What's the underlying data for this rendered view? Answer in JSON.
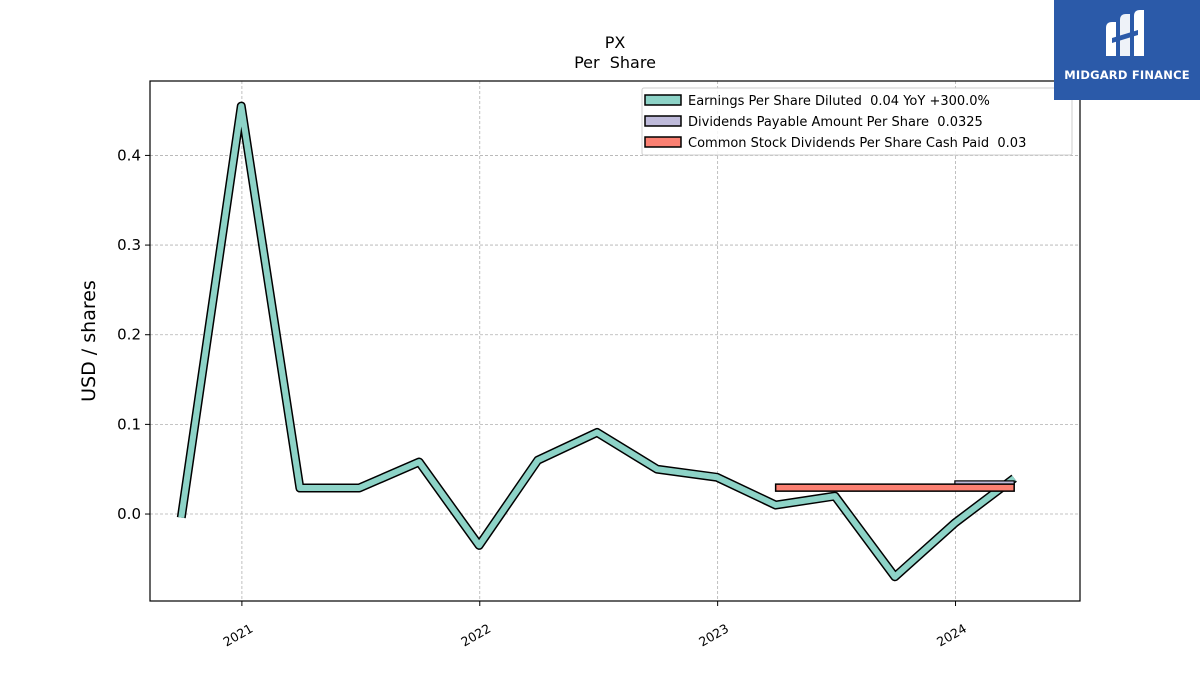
{
  "brand": {
    "name": "MIDGARD FINANCE",
    "logo_icon": "midgard-m-icon",
    "color": "#2b5aa9"
  },
  "chart_data": {
    "type": "line",
    "title": "PX",
    "subtitle": "Per  Share",
    "xlabel": "",
    "ylabel": "USD / shares",
    "x_ticks": [
      "2021",
      "2022",
      "2023",
      "2024"
    ],
    "y_ticks": [
      "0.0",
      "0.1",
      "0.2",
      "0.3",
      "0.4"
    ],
    "ylim": [
      -0.097,
      0.483
    ],
    "xlim": [
      "2020-08-13",
      "2024-07-10"
    ],
    "grid": true,
    "legend_position": "top-right",
    "series": [
      {
        "name": "Earnings Per Share Diluted  0.04 YoY +300.0%",
        "type": "line",
        "color": "#8dd3c7",
        "points": [
          {
            "x": "2020-09-30",
            "y": -0.004
          },
          {
            "x": "2020-12-31",
            "y": 0.455
          },
          {
            "x": "2021-03-31",
            "y": 0.029
          },
          {
            "x": "2021-06-30",
            "y": 0.029
          },
          {
            "x": "2021-09-30",
            "y": 0.058
          },
          {
            "x": "2021-12-31",
            "y": -0.035
          },
          {
            "x": "2022-03-31",
            "y": 0.06
          },
          {
            "x": "2022-06-30",
            "y": 0.091
          },
          {
            "x": "2022-09-30",
            "y": 0.05
          },
          {
            "x": "2022-12-31",
            "y": 0.041
          },
          {
            "x": "2023-03-31",
            "y": 0.01
          },
          {
            "x": "2023-06-30",
            "y": 0.02
          },
          {
            "x": "2023-09-30",
            "y": -0.07
          },
          {
            "x": "2023-12-31",
            "y": -0.01
          },
          {
            "x": "2024-03-31",
            "y": 0.04
          }
        ]
      },
      {
        "name": "Dividends Payable Amount Per Share  0.0325",
        "type": "step",
        "color": "#bebada",
        "points": [
          {
            "x": "2023-12-31",
            "y": 0.0325
          },
          {
            "x": "2024-03-31",
            "y": 0.0325
          }
        ]
      },
      {
        "name": "Common Stock Dividends Per Share Cash Paid  0.03",
        "type": "step",
        "color": "#fb8072",
        "points": [
          {
            "x": "2023-03-31",
            "y": 0.03
          },
          {
            "x": "2024-03-31",
            "y": 0.03
          }
        ]
      }
    ]
  }
}
